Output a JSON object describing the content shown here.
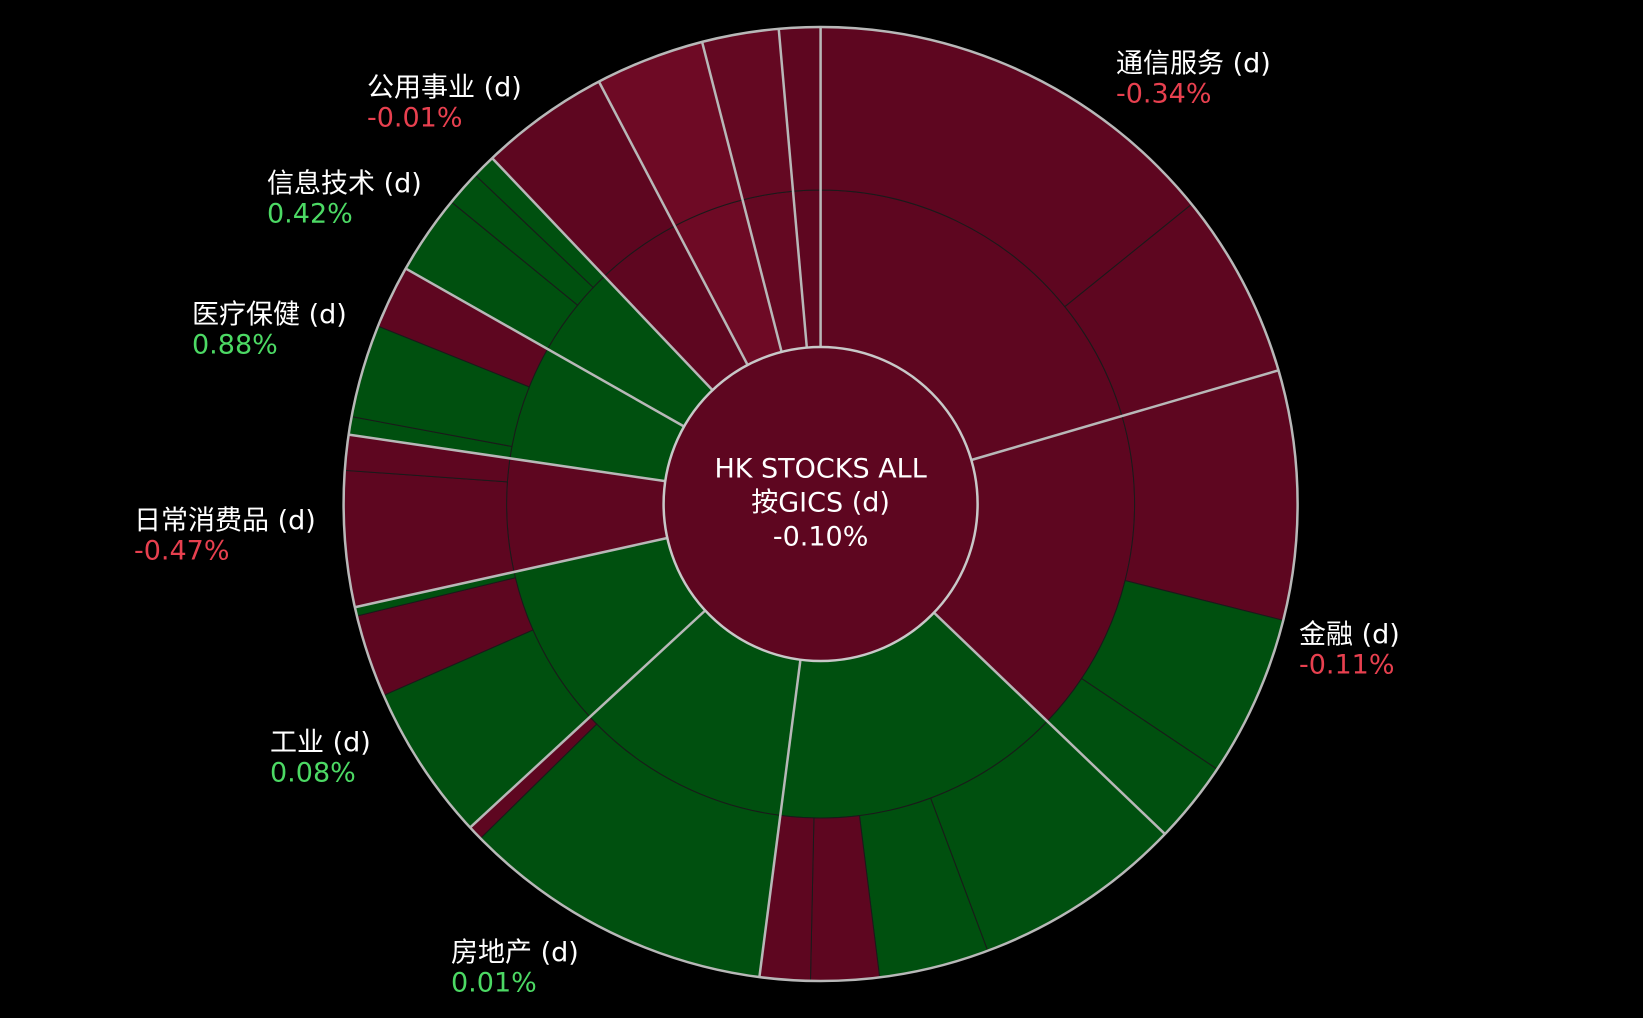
{
  "chart_data": {
    "type": "sunburst",
    "center": {
      "title": "HK STOCKS ALL",
      "subtitle": "按GICS (d)",
      "change": "-0.10%",
      "color": "#5e0620"
    },
    "up_color": "#4cd964",
    "down_color": "#e8404f",
    "sectors": [
      {
        "name": "通信服务 (d)",
        "change": "-0.34%",
        "weight": 20.5,
        "color": "#5e0620",
        "children": [
          {
            "weight": 14.2,
            "color": "#5e0620"
          },
          {
            "weight": 6.3,
            "color": "#5e0620"
          }
        ]
      },
      {
        "name": "金融 (d)",
        "change": "-0.11%",
        "weight": 16.7,
        "color": "#5e0620",
        "children": [
          {
            "weight": 8.5,
            "color": "#5e0620"
          },
          {
            "weight": 5.5,
            "color": "#00500f"
          },
          {
            "weight": 2.8,
            "color": "#00500f"
          }
        ]
      },
      {
        "name": null,
        "change": null,
        "weight": 14.9,
        "color": "#00500f",
        "children": [
          {
            "weight": 7.1,
            "color": "#00500f"
          },
          {
            "weight": 3.7,
            "color": "#00500f"
          },
          {
            "weight": 2.3,
            "color": "#5e0620"
          },
          {
            "weight": 1.7,
            "color": "#5e0620"
          }
        ]
      },
      {
        "name": "房地产 (d)",
        "change": "0.01%",
        "weight": 11.1,
        "color": "#00500f",
        "children": [
          {
            "weight": 10.6,
            "color": "#00500f"
          },
          {
            "weight": 0.5,
            "color": "#5e0620"
          }
        ]
      },
      {
        "name": "工业 (d)",
        "change": "0.08%",
        "weight": 8.4,
        "color": "#00500f",
        "children": [
          {
            "weight": 5.3,
            "color": "#00500f"
          },
          {
            "weight": 2.8,
            "color": "#5e0620"
          },
          {
            "weight": 0.3,
            "color": "#00500f"
          }
        ]
      },
      {
        "name": "日常消费品 (d)",
        "change": "-0.47%",
        "weight": 5.8,
        "color": "#5e0620",
        "children": [
          {
            "weight": 4.6,
            "color": "#5e0620"
          },
          {
            "weight": 1.2,
            "color": "#5e0620"
          }
        ]
      },
      {
        "name": "医疗保健 (d)",
        "change": "0.88%",
        "weight": 5.9,
        "color": "#00500f",
        "children": [
          {
            "weight": 0.6,
            "color": "#00500f"
          },
          {
            "weight": 3.1,
            "color": "#00500f"
          },
          {
            "weight": 2.1,
            "color": "#5e0620"
          }
        ]
      },
      {
        "name": "信息技术 (d)",
        "change": "0.42%",
        "weight": 4.7,
        "color": "#00500f",
        "children": [
          {
            "weight": 2.7,
            "color": "#00500f"
          },
          {
            "weight": 1.2,
            "color": "#00500f"
          },
          {
            "weight": 0.8,
            "color": "#00500f"
          }
        ]
      },
      {
        "name": "公用事业 (d)",
        "change": "-0.01%",
        "weight": 4.4,
        "color": "#5e0620",
        "children": [
          {
            "weight": 4.4,
            "color": "#5e0620"
          }
        ]
      },
      {
        "name": null,
        "change": null,
        "weight": 3.7,
        "color": "#6e0a25",
        "children": [
          {
            "weight": 3.7,
            "color": "#6e0a25"
          }
        ]
      },
      {
        "name": null,
        "change": null,
        "weight": 2.6,
        "color": "#640822",
        "children": [
          {
            "weight": 2.6,
            "color": "#640822"
          }
        ]
      },
      {
        "name": null,
        "change": null,
        "weight": 1.4,
        "color": "#5e0620",
        "children": [
          {
            "weight": 1.4,
            "color": "#5e0620"
          }
        ]
      }
    ]
  }
}
